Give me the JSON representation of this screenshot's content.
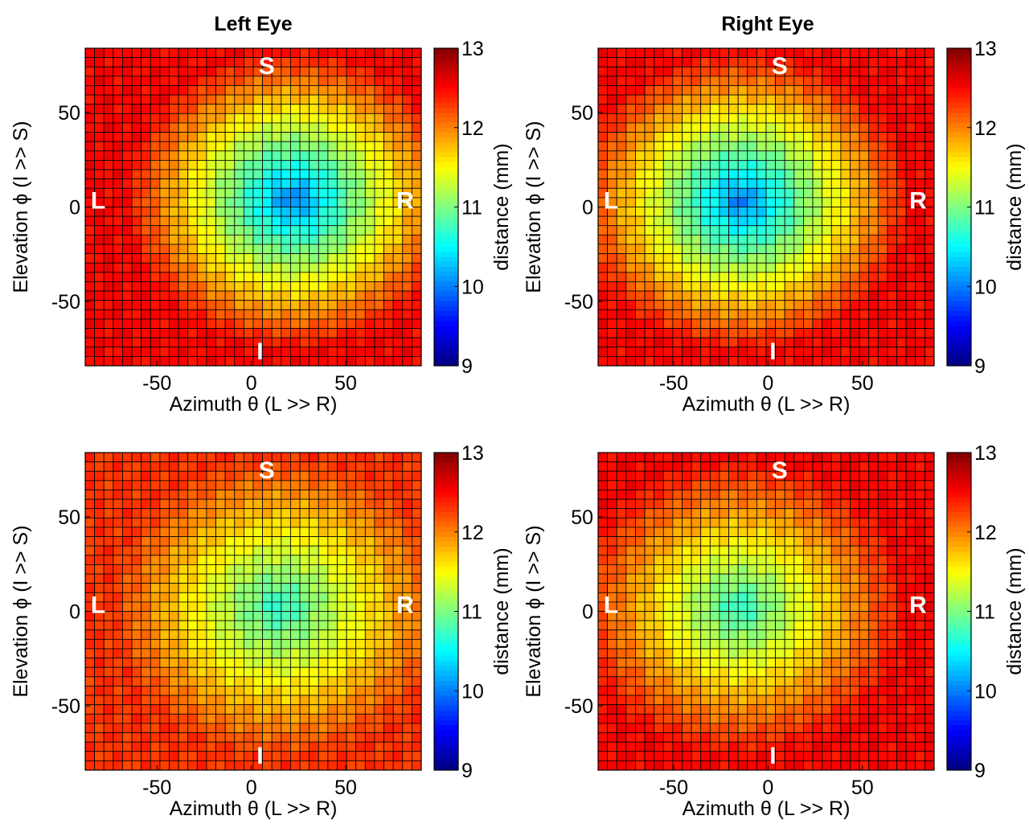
{
  "chart_data": [
    {
      "type": "heatmap",
      "title": "Left Eye",
      "xlabel": "Azimuth θ (L >> R)",
      "ylabel": "Elevation ϕ (I >> S)",
      "xlim": [
        -88,
        90
      ],
      "ylim": [
        -84,
        84
      ],
      "xticks": [
        -50,
        0,
        50
      ],
      "yticks": [
        -50,
        0,
        50
      ],
      "grid": "36 columns x 34 rows",
      "field": {
        "center": [
          22,
          4
        ],
        "center_value": 9.9,
        "edge_value": 12.5
      },
      "colorbar": {
        "label": "distance (mm)",
        "range": [
          9,
          13
        ],
        "ticks": [
          9,
          10,
          11,
          12,
          13
        ],
        "colormap": "jet"
      },
      "annotations": [
        "S",
        "I",
        "L",
        "R"
      ]
    },
    {
      "type": "heatmap",
      "title": "Right Eye",
      "xlabel": "Azimuth θ (L >> R)",
      "ylabel": "Elevation ϕ (I >> S)",
      "xlim": [
        -90,
        88
      ],
      "ylim": [
        -84,
        84
      ],
      "xticks": [
        -50,
        0,
        50
      ],
      "yticks": [
        -50,
        0,
        50
      ],
      "grid": "36 columns x 34 rows",
      "field": {
        "center": [
          -14,
          3
        ],
        "center_value": 9.9,
        "edge_value": 12.5
      },
      "colorbar": {
        "label": "distance (mm)",
        "range": [
          9,
          13
        ],
        "ticks": [
          9,
          10,
          11,
          12,
          13
        ],
        "colormap": "jet"
      },
      "annotations": [
        "S",
        "I",
        "L",
        "R"
      ]
    },
    {
      "type": "heatmap",
      "title": "",
      "xlabel": "Azimuth θ (L >> R)",
      "ylabel": "Elevation ϕ (I >> S)",
      "xlim": [
        -88,
        90
      ],
      "ylim": [
        -84,
        84
      ],
      "xticks": [
        -50,
        0,
        50
      ],
      "yticks": [
        -50,
        0,
        50
      ],
      "grid": "36 columns x 34 rows",
      "field": {
        "center": [
          15,
          2
        ],
        "center_value": 10.6,
        "edge_value": 12.3
      },
      "colorbar": {
        "label": "distance (mm)",
        "range": [
          9,
          13
        ],
        "ticks": [
          9,
          10,
          11,
          12,
          13
        ],
        "colormap": "jet"
      },
      "annotations": [
        "S",
        "I",
        "L",
        "R"
      ]
    },
    {
      "type": "heatmap",
      "title": "",
      "xlabel": "Azimuth θ (L >> R)",
      "ylabel": "Elevation ϕ (I >> S)",
      "xlim": [
        -90,
        88
      ],
      "ylim": [
        -84,
        84
      ],
      "xticks": [
        -50,
        0,
        50
      ],
      "yticks": [
        -50,
        0,
        50
      ],
      "grid": "36 columns x 34 rows",
      "field": {
        "center": [
          -15,
          2
        ],
        "center_value": 10.6,
        "edge_value": 12.5
      },
      "colorbar": {
        "label": "distance (mm)",
        "range": [
          9,
          13
        ],
        "ticks": [
          9,
          10,
          11,
          12,
          13
        ],
        "colormap": "jet"
      },
      "annotations": [
        "S",
        "I",
        "L",
        "R"
      ]
    }
  ]
}
